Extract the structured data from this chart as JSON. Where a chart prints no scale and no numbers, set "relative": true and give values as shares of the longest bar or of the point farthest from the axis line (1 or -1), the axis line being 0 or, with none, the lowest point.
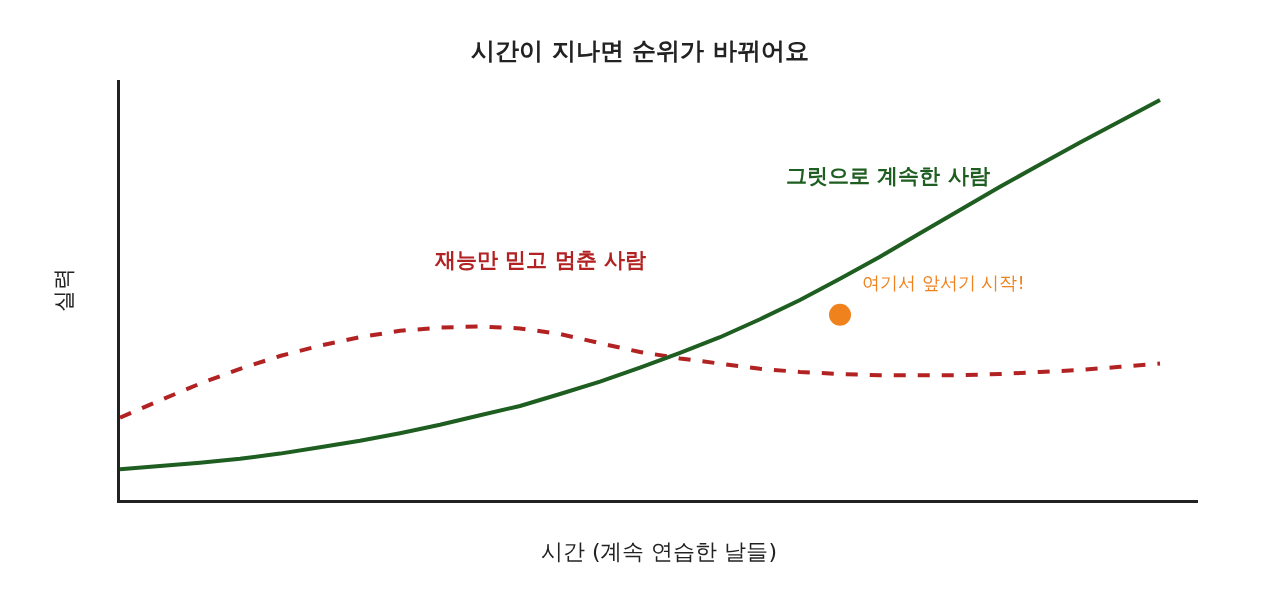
{
  "chart_data": {
    "type": "line",
    "title": "시간이 지나면 순위가 바뀌어요",
    "xlabel": "시간 (계속 연습한 날들)",
    "ylabel": "실력",
    "relative": true,
    "grid": false,
    "legend": false,
    "marker": "none",
    "categories": [
      null,
      null,
      null,
      null,
      null,
      null,
      null,
      null,
      null,
      null,
      null,
      null,
      null,
      null,
      null,
      null,
      null,
      null,
      null,
      null,
      null,
      null,
      null,
      null,
      null,
      null,
      null
    ],
    "series": [
      {
        "name": "재능만 믿고 멈춘 사람",
        "color": "#b22222",
        "line_style": "dashed",
        "values": [
          0.206,
          0.249,
          0.291,
          0.328,
          0.36,
          0.386,
          0.407,
          0.423,
          0.431,
          0.434,
          0.429,
          0.415,
          0.392,
          0.37,
          0.354,
          0.341,
          0.328,
          0.32,
          0.315,
          0.312,
          0.312,
          0.312,
          0.315,
          0.32,
          0.325,
          0.333,
          0.341
        ]
      },
      {
        "name": "그릿으로 계속한 사람",
        "color": "#1e5e20",
        "line_style": "solid",
        "values": [
          0.077,
          0.085,
          0.093,
          0.103,
          0.116,
          0.132,
          0.148,
          0.167,
          0.188,
          0.212,
          0.235,
          0.265,
          0.296,
          0.331,
          0.368,
          0.407,
          0.452,
          0.5,
          0.553,
          0.608,
          0.667,
          0.725,
          0.783,
          0.839,
          0.894,
          0.947,
          1
        ]
      },
      {
        "marker": "circle",
        "color": "#f0821e",
        "values": [
          null,
          null,
          null,
          null,
          null,
          null,
          null,
          null,
          null,
          null,
          null,
          null,
          null,
          null,
          null,
          null,
          null,
          null,
          0.463,
          null,
          null,
          null,
          null,
          null,
          null,
          null,
          null
        ]
      }
    ],
    "annotations": [
      "여기서 앞서기 시작!"
    ]
  }
}
